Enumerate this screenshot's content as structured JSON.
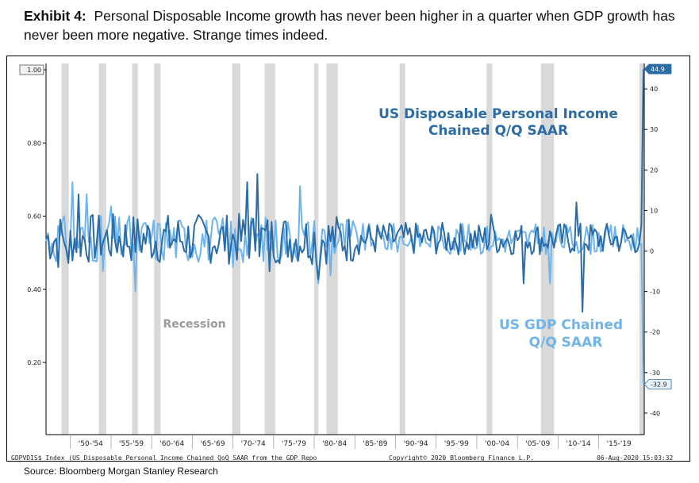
{
  "header": {
    "exhibit_label": "Exhibit 4:",
    "title_text": "Personal Disposable Income growth has never been higher in a quarter when GDP growth has never been more negative. Strange times indeed."
  },
  "source": "Source: Bloomberg Morgan Stanley Research",
  "footer": {
    "ticker_note": "GDPVDIS$ Index (US Disposable Personal Income Chained QoQ SAAR from the GDP Repo",
    "copyright": "Copyright© 2020 Bloomberg Finance L.P.",
    "timestamp": "06-Aug-2020 15:03:32"
  },
  "chart_data": {
    "type": "line",
    "left_axis": {
      "ticks": [
        "1.00",
        "0.80",
        "0.60",
        "0.40",
        "0.20"
      ],
      "values": [
        1.0,
        0.8,
        0.6,
        0.4,
        0.2
      ],
      "range": [
        0.0,
        1.0
      ]
    },
    "right_axis": {
      "ticks": [
        "40",
        "30",
        "20",
        "10",
        "0",
        "-10",
        "-20",
        "-30",
        "-40"
      ],
      "values": [
        40,
        30,
        20,
        10,
        0,
        -10,
        -20,
        -30,
        -40
      ],
      "range": [
        -45,
        46
      ]
    },
    "x_ticks": [
      "'50-'54",
      "'55-'59",
      "'60-'64",
      "'65-'69",
      "'70-'74",
      "'75-'79",
      "'80-'84",
      "'85-'89",
      "'90-'94",
      "'95-'99",
      "'00-'04",
      "'05-'09",
      "'10-'14",
      "'15-'19"
    ],
    "x_range": [
      1947,
      2020.6
    ],
    "recessions": [
      [
        1948.9,
        1949.8
      ],
      [
        1953.5,
        1954.4
      ],
      [
        1957.6,
        1958.3
      ],
      [
        1960.3,
        1961.1
      ],
      [
        1969.9,
        1970.9
      ],
      [
        1973.9,
        1975.2
      ],
      [
        1980.0,
        1980.5
      ],
      [
        1981.5,
        1982.9
      ],
      [
        1990.5,
        1991.2
      ],
      [
        2001.2,
        2001.9
      ],
      [
        2007.9,
        2009.5
      ],
      [
        2020.0,
        2020.6
      ]
    ],
    "recession_label": "Recession",
    "series": [
      {
        "name": "US Disposable Personal Income Chained Q/Q SAAR",
        "color": "#2b6ca6",
        "last_value": "44.9",
        "end_value": 44.9
      },
      {
        "name": "US GDP Chained Q/Q SAAR",
        "color": "#6fb4ec",
        "last_value": "-32.9",
        "end_value": -32.9
      }
    ],
    "annotations": {
      "dpi_line1": "US Disposable Personal Income",
      "dpi_line2": "Chained Q/Q SAAR",
      "gdp_line1": "US GDP Chained",
      "gdp_line2": "Q/Q SAAR"
    }
  }
}
